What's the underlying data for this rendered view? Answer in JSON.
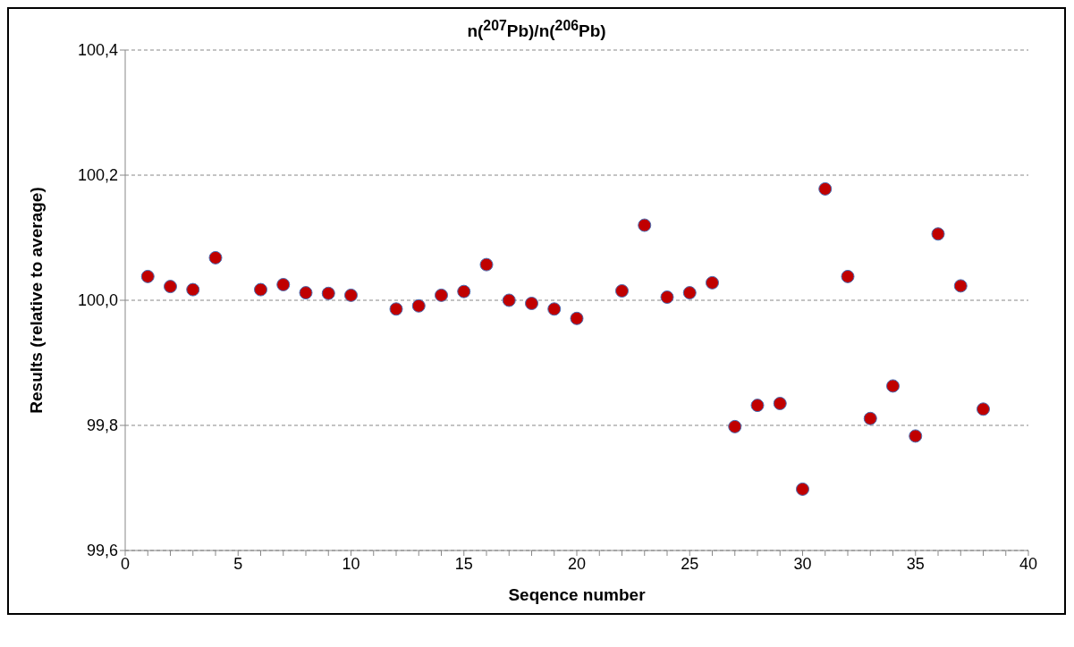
{
  "chart_data": {
    "type": "scatter",
    "title": "n($^{207}$Pb)/n($^{206}$Pb)",
    "xlabel": "Seqence number",
    "ylabel": "Results (relative to average)",
    "x": [
      1,
      2,
      3,
      4,
      6,
      7,
      8,
      9,
      10,
      12,
      13,
      14,
      15,
      16,
      17,
      18,
      19,
      20,
      22,
      23,
      24,
      25,
      26,
      27,
      28,
      29,
      30,
      31,
      32,
      33,
      34,
      35,
      36,
      37,
      38
    ],
    "series": [
      {
        "color": "#c00000",
        "values": [
          100.038,
          100.022,
          100.017,
          100.068,
          100.017,
          100.025,
          100.012,
          100.011,
          100.008,
          99.986,
          99.991,
          100.008,
          100.014,
          100.057,
          100.0,
          99.995,
          99.986,
          99.971,
          100.015,
          100.12,
          100.005,
          100.012,
          100.028,
          99.798,
          99.832,
          99.835,
          99.698,
          100.178,
          100.038,
          99.811,
          99.863,
          99.783,
          100.106,
          100.023,
          99.826
        ]
      }
    ],
    "xlim": [
      0,
      40
    ],
    "xticks": [
      0,
      {
        "value": 1,
        "label": null
      },
      {
        "value": 2,
        "label": null
      },
      {
        "value": 3,
        "label": null
      },
      {
        "value": 4,
        "label": null
      },
      5,
      {
        "value": 6,
        "label": null
      },
      {
        "value": 7,
        "label": null
      },
      {
        "value": 8,
        "label": null
      },
      {
        "value": 9,
        "label": null
      },
      10,
      {
        "value": 11,
        "label": null
      },
      {
        "value": 12,
        "label": null
      },
      {
        "value": 13,
        "label": null
      },
      {
        "value": 14,
        "label": null
      },
      15,
      {
        "value": 16,
        "label": null
      },
      {
        "value": 17,
        "label": null
      },
      {
        "value": 18,
        "label": null
      },
      {
        "value": 19,
        "label": null
      },
      20,
      {
        "value": 21,
        "label": null
      },
      {
        "value": 22,
        "label": null
      },
      {
        "value": 23,
        "label": null
      },
      {
        "value": 24,
        "label": null
      },
      25,
      {
        "value": 26,
        "label": null
      },
      {
        "value": 27,
        "label": null
      },
      {
        "value": 28,
        "label": null
      },
      {
        "value": 29,
        "label": null
      },
      30,
      {
        "value": 31,
        "label": null
      },
      {
        "value": 32,
        "label": null
      },
      {
        "value": 33,
        "label": null
      },
      {
        "value": 34,
        "label": null
      },
      35,
      {
        "value": 36,
        "label": null
      },
      {
        "value": 37,
        "label": null
      },
      {
        "value": 38,
        "label": null
      },
      {
        "value": 39,
        "label": null
      },
      40
    ],
    "ylim": [
      99.6,
      100.4
    ],
    "yticks": [
      {
        "value": 99.6,
        "label": "99,6"
      },
      {
        "value": 99.8,
        "label": "99,8"
      },
      {
        "value": 100.0,
        "label": "100,0"
      },
      {
        "value": 100.2,
        "label": "100,2"
      },
      {
        "value": 100.4,
        "label": "100,4"
      }
    ],
    "grid": "y",
    "line_style": "dashed",
    "marker": "circle",
    "legend": false
  }
}
